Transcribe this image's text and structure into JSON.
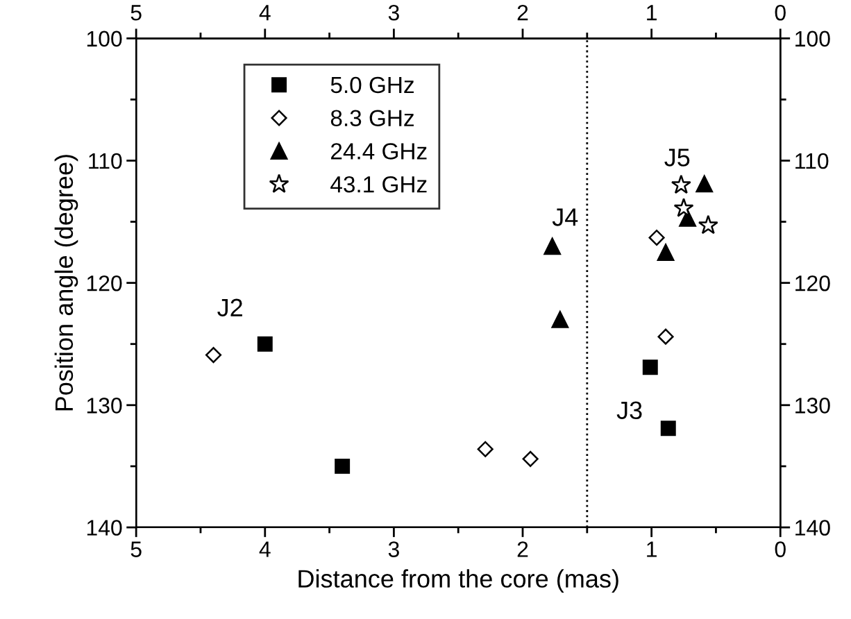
{
  "chart_data": {
    "type": "scatter",
    "xlabel": "Distance from the core (mas)",
    "ylabel": "Position angle (degree)",
    "xlim": [
      5,
      0
    ],
    "xticks": [
      5,
      4,
      3,
      2,
      1,
      0
    ],
    "ylim": [
      140,
      100
    ],
    "yticks": [
      100,
      110,
      120,
      130,
      140
    ],
    "x2lim": [
      5,
      0
    ],
    "x2ticks": [
      5,
      4,
      3,
      2,
      1,
      0
    ],
    "y2lim": [
      140,
      100
    ],
    "y2ticks": [
      100,
      110,
      120,
      130,
      140
    ],
    "grid": false,
    "legend": "top left",
    "series": [
      {
        "name": "5.0 GHz",
        "color": "#000000",
        "marker": "square",
        "x": [
          4.0,
          3.4,
          1.01,
          0.87
        ],
        "values": [
          125.0,
          135.0,
          126.9,
          131.9
        ]
      },
      {
        "name": "8.3 GHz",
        "color": "#000000",
        "marker": "diamond",
        "x": [
          4.4,
          2.29,
          1.94,
          0.96,
          0.89
        ],
        "values": [
          125.9,
          133.6,
          134.4,
          116.3,
          124.4
        ]
      },
      {
        "name": "24.4 GHz",
        "color": "#000000",
        "marker": "triangle",
        "x": [
          1.77,
          1.71,
          0.89,
          0.72,
          0.59
        ],
        "values": [
          117.0,
          123.0,
          117.5,
          114.7,
          111.9
        ]
      },
      {
        "name": "43.1 GHz",
        "color": "#000000",
        "marker": "star",
        "x": [
          0.77,
          0.75,
          0.56
        ],
        "values": [
          112.0,
          113.9,
          115.3
        ]
      }
    ],
    "ref_lines": [
      {
        "axis": "x",
        "value": 1.5,
        "color": "#000000",
        "line_style": "dotted"
      }
    ],
    "annotations": [
      "J2",
      "J3",
      "J4",
      "J5"
    ]
  }
}
